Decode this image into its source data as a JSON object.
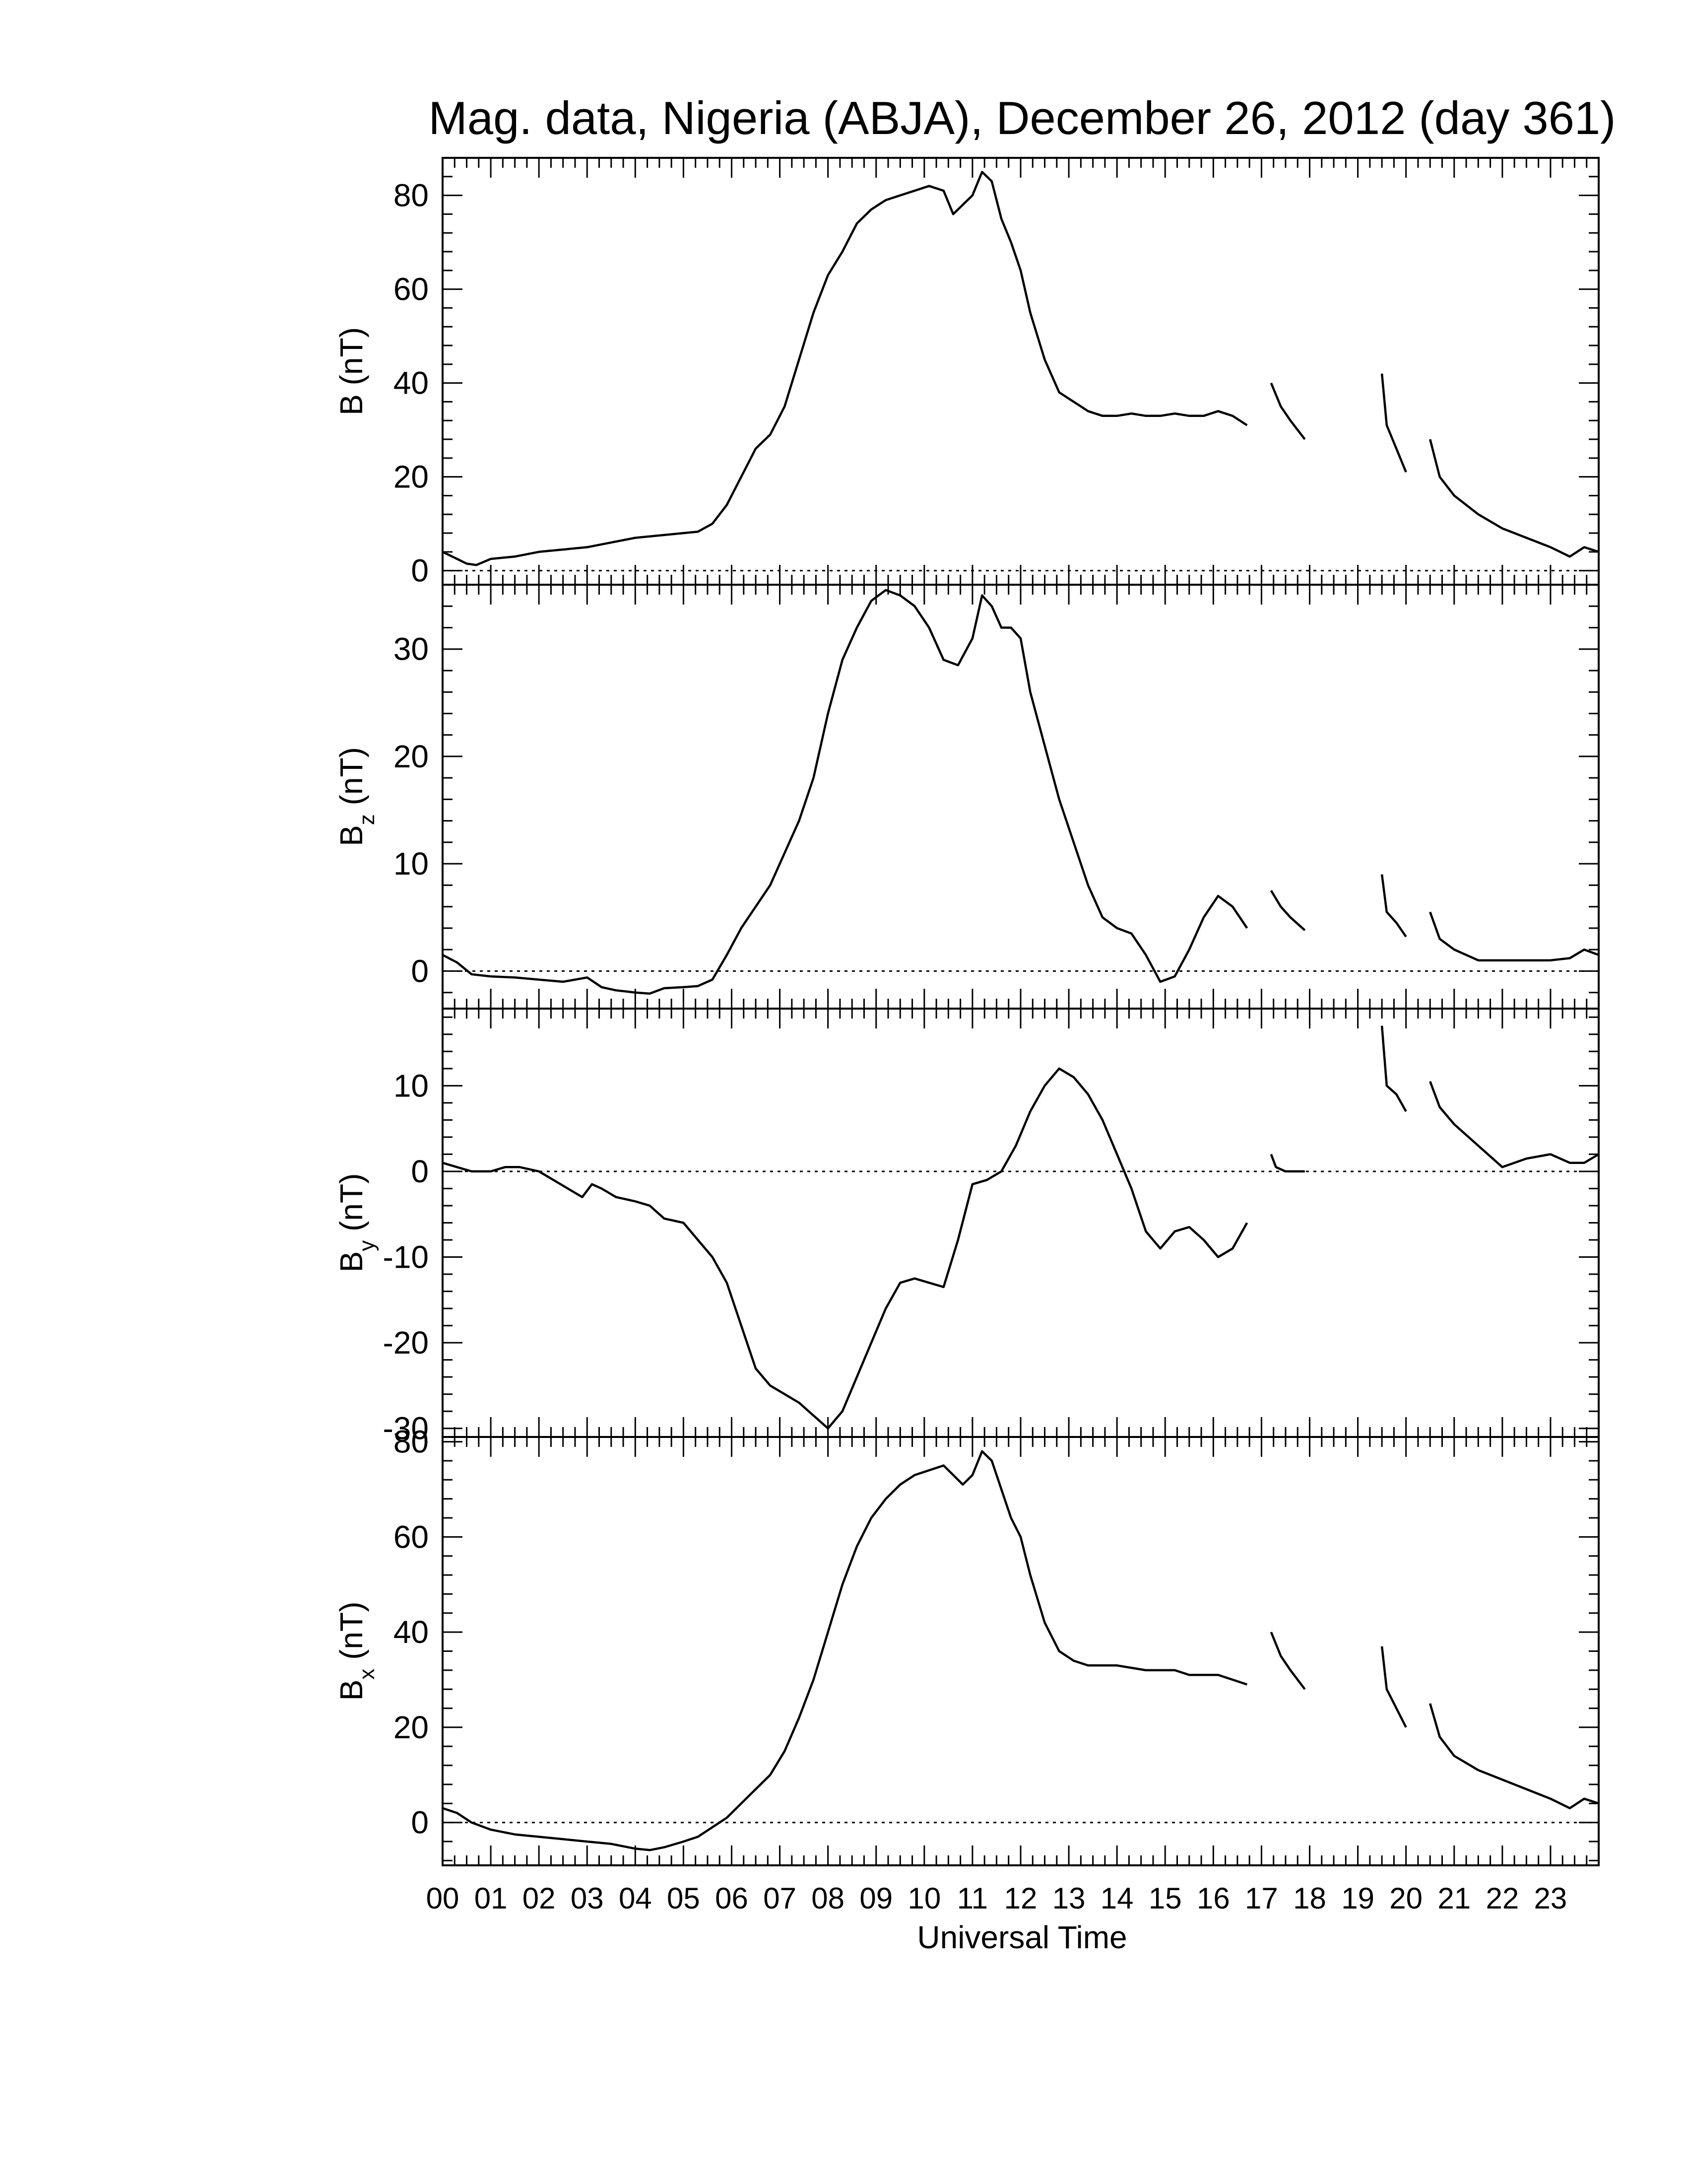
{
  "chart_data": {
    "type": "line",
    "title": "Mag. data, Nigeria (ABJA), December 26, 2012 (day 361)",
    "xlabel": "Universal Time",
    "xlim": [
      0,
      24
    ],
    "x_tick_labels": [
      "00",
      "01",
      "02",
      "03",
      "04",
      "05",
      "06",
      "07",
      "08",
      "09",
      "10",
      "11",
      "12",
      "13",
      "14",
      "15",
      "16",
      "17",
      "18",
      "19",
      "20",
      "21",
      "22",
      "23"
    ],
    "grid": false,
    "panels": [
      {
        "id": "B",
        "ylabel_main": "B",
        "ylabel_sub": "",
        "ylabel_unit": "(nT)",
        "ylim": [
          -3,
          88
        ],
        "yticks": [
          0,
          20,
          40,
          60,
          80
        ],
        "y_tick_labels": [
          "0",
          "20",
          "40",
          "60",
          "80"
        ],
        "zero_line": true,
        "segments": [
          {
            "x": [
              0,
              0.3,
              0.5,
              0.7,
              1,
              1.5,
              2,
              2.5,
              3,
              3.5,
              4,
              4.5,
              5,
              5.3,
              5.6,
              5.9,
              6.2,
              6.5,
              6.8,
              7.1,
              7.4,
              7.7,
              8,
              8.3,
              8.6,
              8.9,
              9.2,
              9.5,
              9.8,
              10.1,
              10.4,
              10.6,
              10.8,
              11,
              11.2,
              11.4,
              11.6,
              11.8,
              12,
              12.2,
              12.5,
              12.8,
              13.1,
              13.4,
              13.7,
              14,
              14.3,
              14.6,
              14.9,
              15.2,
              15.5,
              15.8,
              16.1,
              16.4,
              16.7
            ],
            "y": [
              4,
              2.5,
              1.5,
              1.2,
              2.5,
              3,
              4,
              4.5,
              5,
              6,
              7,
              7.5,
              8,
              8.3,
              10,
              14,
              20,
              26,
              29,
              35,
              45,
              55,
              63,
              68,
              74,
              77,
              79,
              80,
              81,
              82,
              81,
              76,
              78,
              80,
              85,
              83,
              75,
              70,
              64,
              55,
              45,
              38,
              36,
              34,
              33,
              33,
              33.5,
              33,
              33,
              33.5,
              33,
              33,
              34,
              33,
              31
            ]
          },
          {
            "x": [
              17.2,
              17.4,
              17.6,
              17.9
            ],
            "y": [
              40,
              35,
              32,
              28
            ]
          },
          {
            "x": [
              19.5,
              19.6,
              19.8,
              20
            ],
            "y": [
              42,
              31,
              26,
              21
            ]
          },
          {
            "x": [
              20.5,
              20.7,
              21,
              21.5,
              22,
              22.5,
              23,
              23.4,
              23.7,
              24
            ],
            "y": [
              28,
              20,
              16,
              12,
              9,
              7,
              5,
              3,
              5,
              4
            ]
          }
        ]
      },
      {
        "id": "Bz",
        "ylabel_main": "B",
        "ylabel_sub": "z",
        "ylabel_unit": "(nT)",
        "ylim": [
          -3.5,
          36
        ],
        "yticks": [
          0,
          10,
          20,
          30
        ],
        "y_tick_labels": [
          "0",
          "10",
          "20",
          "30"
        ],
        "zero_line": true,
        "segments": [
          {
            "x": [
              0,
              0.3,
              0.6,
              1,
              1.5,
              2,
              2.5,
              3,
              3.3,
              3.6,
              4,
              4.3,
              4.6,
              5,
              5.3,
              5.6,
              5.9,
              6.2,
              6.5,
              6.8,
              7.1,
              7.4,
              7.7,
              8,
              8.3,
              8.6,
              8.9,
              9.2,
              9.5,
              9.8,
              10.1,
              10.4,
              10.7,
              11,
              11.2,
              11.4,
              11.6,
              11.8,
              12,
              12.2,
              12.5,
              12.8,
              13.1,
              13.4,
              13.7,
              14,
              14.3,
              14.6,
              14.9,
              15.2,
              15.5,
              15.8,
              16.1,
              16.4,
              16.7
            ],
            "y": [
              1.5,
              0.8,
              -0.3,
              -0.5,
              -0.6,
              -0.8,
              -1,
              -0.6,
              -1.5,
              -1.8,
              -2,
              -2.1,
              -1.6,
              -1.5,
              -1.4,
              -0.8,
              1.5,
              4,
              6,
              8,
              11,
              14,
              18,
              24,
              29,
              32,
              34.5,
              35.5,
              35,
              34,
              32,
              29,
              28.5,
              31,
              35,
              34,
              32,
              32,
              31,
              26,
              21,
              16,
              12,
              8,
              5,
              4,
              3.5,
              1.5,
              -1,
              -0.5,
              2,
              5,
              7,
              6,
              4
            ]
          },
          {
            "x": [
              17.2,
              17.4,
              17.6,
              17.9
            ],
            "y": [
              7.5,
              6,
              5,
              3.8
            ]
          },
          {
            "x": [
              19.5,
              19.6,
              19.8,
              20
            ],
            "y": [
              9,
              5.5,
              4.5,
              3.2
            ]
          },
          {
            "x": [
              20.5,
              20.7,
              21,
              21.5,
              22,
              22.5,
              23,
              23.4,
              23.7,
              24
            ],
            "y": [
              5.5,
              3,
              2,
              1,
              1,
              1,
              1,
              1.2,
              2,
              1.5
            ]
          }
        ]
      },
      {
        "id": "By",
        "ylabel_main": "B",
        "ylabel_sub": "y",
        "ylabel_unit": "(nT)",
        "ylim": [
          -31,
          19
        ],
        "yticks": [
          -30,
          -20,
          -10,
          0,
          10
        ],
        "y_tick_labels": [
          "-30",
          "-20",
          "-10",
          "0",
          "10"
        ],
        "zero_line": true,
        "segments": [
          {
            "x": [
              0,
              0.3,
              0.6,
              1,
              1.3,
              1.6,
              2,
              2.3,
              2.6,
              2.9,
              3.1,
              3.3,
              3.6,
              4,
              4.3,
              4.6,
              5,
              5.3,
              5.6,
              5.9,
              6.2,
              6.5,
              6.8,
              7.1,
              7.4,
              7.7,
              8,
              8.3,
              8.6,
              8.9,
              9.2,
              9.5,
              9.8,
              10.1,
              10.4,
              10.7,
              11,
              11.3,
              11.6,
              11.9,
              12.2,
              12.5,
              12.8,
              13.1,
              13.4,
              13.7,
              14,
              14.3,
              14.6,
              14.9,
              15.2,
              15.5,
              15.8,
              16.1,
              16.4,
              16.7
            ],
            "y": [
              1,
              0.5,
              0,
              0,
              0.5,
              0.5,
              0,
              -1,
              -2,
              -3,
              -1.5,
              -2,
              -3,
              -3.5,
              -4,
              -5.5,
              -6,
              -8,
              -10,
              -13,
              -18,
              -23,
              -25,
              -26,
              -27,
              -28.5,
              -30,
              -28,
              -24,
              -20,
              -16,
              -13,
              -12.5,
              -13,
              -13.5,
              -8,
              -1.5,
              -1,
              0,
              3,
              7,
              10,
              12,
              11,
              9,
              6,
              2,
              -2,
              -7,
              -9,
              -7,
              -6.5,
              -8,
              -10,
              -9,
              -6
            ]
          },
          {
            "x": [
              17.2,
              17.3,
              17.5,
              17.9
            ],
            "y": [
              2,
              0.5,
              0,
              0
            ]
          },
          {
            "x": [
              19.5,
              19.6,
              19.8,
              20
            ],
            "y": [
              17,
              10,
              9,
              7
            ]
          },
          {
            "x": [
              20.5,
              20.7,
              21,
              21.5,
              22,
              22.5,
              23,
              23.4,
              23.7,
              24
            ],
            "y": [
              10.5,
              7.5,
              5.5,
              3,
              0.5,
              1.5,
              2,
              1,
              1,
              2
            ]
          }
        ]
      },
      {
        "id": "Bx",
        "ylabel_main": "B",
        "ylabel_sub": "x",
        "ylabel_unit": "(nT)",
        "ylim": [
          -9,
          81
        ],
        "yticks": [
          0,
          20,
          40,
          60,
          80
        ],
        "y_tick_labels": [
          "0",
          "20",
          "40",
          "60",
          "80"
        ],
        "zero_line": true,
        "segments": [
          {
            "x": [
              0,
              0.3,
              0.6,
              1,
              1.5,
              2,
              2.5,
              3,
              3.5,
              4,
              4.3,
              4.6,
              5,
              5.3,
              5.6,
              5.9,
              6.2,
              6.5,
              6.8,
              7.1,
              7.4,
              7.7,
              8,
              8.3,
              8.6,
              8.9,
              9.2,
              9.5,
              9.8,
              10.1,
              10.4,
              10.6,
              10.8,
              11,
              11.2,
              11.4,
              11.6,
              11.8,
              12,
              12.2,
              12.5,
              12.8,
              13.1,
              13.4,
              13.7,
              14,
              14.3,
              14.6,
              14.9,
              15.2,
              15.5,
              15.8,
              16.1,
              16.4,
              16.7
            ],
            "y": [
              3,
              2,
              0,
              -1.5,
              -2.5,
              -3,
              -3.5,
              -4,
              -4.5,
              -5.5,
              -5.8,
              -5.2,
              -4,
              -3,
              -1,
              1,
              4,
              7,
              10,
              15,
              22,
              30,
              40,
              50,
              58,
              64,
              68,
              71,
              73,
              74,
              75,
              73,
              71,
              73,
              78,
              76,
              70,
              64,
              60,
              52,
              42,
              36,
              34,
              33,
              33,
              33,
              32.5,
              32,
              32,
              32,
              31,
              31,
              31,
              30,
              29
            ]
          },
          {
            "x": [
              17.2,
              17.4,
              17.6,
              17.9
            ],
            "y": [
              40,
              35,
              32,
              28
            ]
          },
          {
            "x": [
              19.5,
              19.6,
              19.8,
              20
            ],
            "y": [
              37,
              28,
              24,
              20
            ]
          },
          {
            "x": [
              20.5,
              20.7,
              21,
              21.5,
              22,
              22.5,
              23,
              23.4,
              23.7,
              24
            ],
            "y": [
              25,
              18,
              14,
              11,
              9,
              7,
              5,
              3,
              5,
              4
            ]
          }
        ]
      }
    ]
  }
}
